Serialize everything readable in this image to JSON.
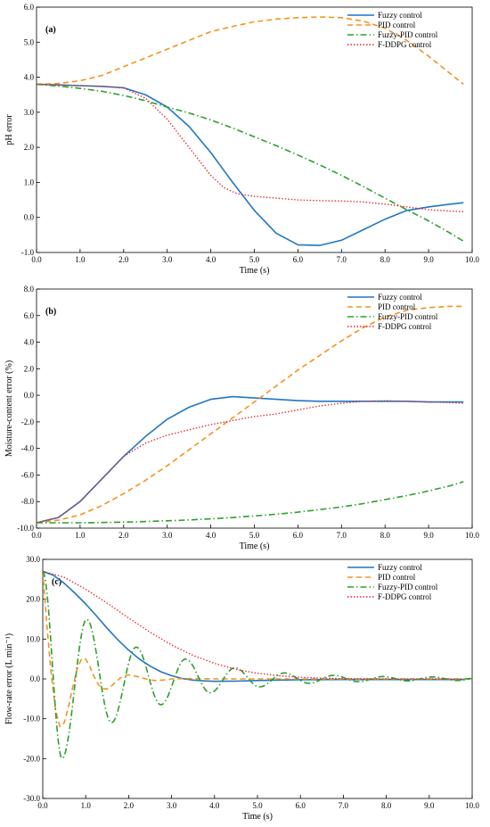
{
  "chart_data": [
    {
      "type": "line",
      "panel_label": "(a)",
      "xlabel": "Time (s)",
      "ylabel": "pH error",
      "xlim": [
        0,
        10
      ],
      "ylim": [
        -1,
        6
      ],
      "x_ticks": [
        "0.0",
        "1.0",
        "2.0",
        "3.0",
        "4.0",
        "5.0",
        "6.0",
        "7.0",
        "8.0",
        "9.0",
        "10.0"
      ],
      "y_ticks": [
        "-1.0",
        "0.0",
        "1.0",
        "2.0",
        "3.0",
        "4.0",
        "5.0",
        "6.0"
      ],
      "legend_position": "top-right",
      "series": [
        {
          "name": "Fuzzy control",
          "color": "#1f77c4",
          "style": "solid",
          "x": [
            0,
            0.5,
            1,
            1.5,
            2,
            2.5,
            3,
            3.5,
            4,
            4.5,
            5,
            5.5,
            6,
            6.5,
            7,
            7.5,
            8,
            8.5,
            9,
            9.5,
            9.8
          ],
          "y": [
            3.8,
            3.78,
            3.76,
            3.74,
            3.7,
            3.5,
            3.15,
            2.6,
            1.85,
            1.0,
            0.2,
            -0.45,
            -0.78,
            -0.8,
            -0.65,
            -0.35,
            -0.05,
            0.2,
            0.3,
            0.38,
            0.42
          ]
        },
        {
          "name": "PID control",
          "color": "#f5921e",
          "style": "dashed",
          "x": [
            0,
            0.5,
            1,
            1.5,
            2,
            2.5,
            3,
            3.5,
            4,
            4.5,
            5,
            5.5,
            6,
            6.5,
            7,
            7.5,
            8,
            8.5,
            9,
            9.5,
            9.8
          ],
          "y": [
            3.8,
            3.82,
            3.9,
            4.05,
            4.3,
            4.55,
            4.8,
            5.05,
            5.3,
            5.45,
            5.58,
            5.66,
            5.7,
            5.72,
            5.7,
            5.6,
            5.4,
            5.05,
            4.6,
            4.1,
            3.8
          ]
        },
        {
          "name": "Fuzzy-PID control",
          "color": "#2e9e2e",
          "style": "dashdot",
          "x": [
            0,
            0.5,
            1,
            1.5,
            2,
            2.5,
            3,
            3.5,
            4,
            4.5,
            5,
            5.5,
            6,
            6.5,
            7,
            7.5,
            8,
            8.5,
            9,
            9.5,
            9.8
          ],
          "y": [
            3.8,
            3.75,
            3.68,
            3.6,
            3.48,
            3.33,
            3.15,
            2.98,
            2.78,
            2.55,
            2.3,
            2.05,
            1.78,
            1.5,
            1.2,
            0.88,
            0.55,
            0.22,
            -0.1,
            -0.45,
            -0.68
          ]
        },
        {
          "name": "F-DDPG control",
          "color": "#e0262b",
          "style": "dotted",
          "x": [
            0,
            0.5,
            1,
            1.5,
            2,
            2.5,
            3,
            3.5,
            4,
            4.3,
            4.6,
            5,
            5.5,
            6,
            6.5,
            7,
            7.5,
            8,
            8.5,
            9,
            9.5,
            9.8
          ],
          "y": [
            3.8,
            3.78,
            3.76,
            3.74,
            3.7,
            3.4,
            2.8,
            2.0,
            1.2,
            0.85,
            0.68,
            0.6,
            0.55,
            0.5,
            0.48,
            0.47,
            0.44,
            0.38,
            0.3,
            0.22,
            0.18,
            0.16
          ]
        }
      ]
    },
    {
      "type": "line",
      "panel_label": "(b)",
      "xlabel": "Time (s)",
      "ylabel": "Moisture-content error (%)",
      "xlim": [
        0,
        10
      ],
      "ylim": [
        -10,
        8
      ],
      "x_ticks": [
        "0.0",
        "1.0",
        "2.0",
        "3.0",
        "4.0",
        "5.0",
        "6.0",
        "7.0",
        "8.0",
        "9.0",
        "10.0"
      ],
      "y_ticks": [
        "-10.0",
        "-8.0",
        "-6.0",
        "-4.0",
        "-2.0",
        "0.0",
        "2.0",
        "4.0",
        "6.0",
        "8.0"
      ],
      "legend_position": "top-right",
      "series": [
        {
          "name": "Fuzzy control",
          "color": "#1f77c4",
          "style": "solid",
          "x": [
            0,
            0.5,
            1,
            1.5,
            2,
            2.5,
            3,
            3.5,
            4,
            4.5,
            5,
            5.5,
            6,
            6.5,
            7,
            7.5,
            8,
            8.5,
            9,
            9.5,
            9.8
          ],
          "y": [
            -9.6,
            -9.2,
            -8.0,
            -6.3,
            -4.6,
            -3.1,
            -1.8,
            -0.9,
            -0.3,
            -0.1,
            -0.2,
            -0.3,
            -0.4,
            -0.45,
            -0.45,
            -0.45,
            -0.45,
            -0.45,
            -0.5,
            -0.5,
            -0.5
          ]
        },
        {
          "name": "PID control",
          "color": "#f5921e",
          "style": "dashed",
          "x": [
            0,
            0.5,
            1,
            1.5,
            2,
            2.5,
            3,
            3.5,
            4,
            4.5,
            5,
            5.5,
            6,
            6.5,
            7,
            7.5,
            8,
            8.5,
            9,
            9.5,
            9.8
          ],
          "y": [
            -9.6,
            -9.4,
            -9.0,
            -8.3,
            -7.4,
            -6.4,
            -5.3,
            -4.1,
            -2.9,
            -1.7,
            -0.5,
            0.7,
            1.9,
            3.0,
            4.1,
            5.1,
            5.9,
            6.4,
            6.6,
            6.7,
            6.7
          ]
        },
        {
          "name": "Fuzzy-PID control",
          "color": "#2e9e2e",
          "style": "dashdot",
          "x": [
            0,
            0.5,
            1,
            1.5,
            2,
            2.5,
            3,
            3.5,
            4,
            4.5,
            5,
            5.5,
            6,
            6.5,
            7,
            7.5,
            8,
            8.5,
            9,
            9.5,
            9.8
          ],
          "y": [
            -9.6,
            -9.6,
            -9.6,
            -9.58,
            -9.55,
            -9.5,
            -9.45,
            -9.38,
            -9.3,
            -9.2,
            -9.08,
            -8.95,
            -8.8,
            -8.6,
            -8.4,
            -8.15,
            -7.85,
            -7.55,
            -7.2,
            -6.8,
            -6.5
          ]
        },
        {
          "name": "F-DDPG control",
          "color": "#e0262b",
          "style": "dotted",
          "x": [
            0,
            0.5,
            1,
            1.5,
            2,
            2.5,
            3,
            3.5,
            4,
            4.5,
            5,
            5.5,
            6,
            6.5,
            7,
            7.5,
            8,
            8.5,
            9,
            9.5,
            9.8
          ],
          "y": [
            -9.6,
            -9.2,
            -8.0,
            -6.3,
            -4.6,
            -3.6,
            -3.0,
            -2.6,
            -2.2,
            -1.9,
            -1.6,
            -1.4,
            -1.1,
            -0.8,
            -0.6,
            -0.45,
            -0.4,
            -0.45,
            -0.5,
            -0.55,
            -0.6
          ]
        }
      ]
    },
    {
      "type": "line",
      "panel_label": "(c)",
      "xlabel": "Time (s)",
      "ylabel": "Flow-rate error (L min⁻¹)",
      "xlim": [
        0,
        10
      ],
      "ylim": [
        -30,
        30
      ],
      "x_ticks": [
        "0.0",
        "1.0",
        "2.0",
        "3.0",
        "4.0",
        "5.0",
        "6.0",
        "7.0",
        "8.0",
        "9.0",
        "10.0"
      ],
      "y_ticks": [
        "-30.0",
        "-20.0",
        "-10.0",
        "0.0",
        "10.0",
        "20.0",
        "30.0"
      ],
      "legend_position": "top-right",
      "series": [
        {
          "name": "Fuzzy control",
          "color": "#1f77c4",
          "style": "solid",
          "x": [
            0,
            0.25,
            0.5,
            0.75,
            1,
            1.25,
            1.5,
            1.75,
            2,
            2.25,
            2.5,
            2.75,
            3,
            3.25,
            3.5,
            3.75,
            4,
            4.5,
            5,
            5.5,
            6,
            7,
            8,
            9,
            9.8
          ],
          "y": [
            27,
            26,
            24,
            21.5,
            18.8,
            15.8,
            12.7,
            9.8,
            7.2,
            5.0,
            3.2,
            1.8,
            0.8,
            0.1,
            -0.3,
            -0.5,
            -0.6,
            -0.55,
            -0.4,
            -0.3,
            -0.2,
            -0.15,
            -0.15,
            -0.15,
            -0.15
          ]
        },
        {
          "name": "PID control",
          "color": "#f5921e",
          "style": "dashed",
          "x": [
            0,
            0.1,
            0.2,
            0.3,
            0.4,
            0.5,
            0.6,
            0.7,
            0.8,
            0.9,
            1.0,
            1.1,
            1.2,
            1.3,
            1.4,
            1.5,
            1.6,
            1.7,
            1.8,
            1.9,
            2.0,
            2.2,
            2.4,
            2.6,
            2.8,
            3.0,
            3.5,
            4,
            5,
            6,
            7,
            8,
            9,
            9.8
          ],
          "y": [
            27,
            13,
            1,
            -8,
            -12,
            -11,
            -7,
            -2,
            2.5,
            5,
            5,
            3,
            0.5,
            -1.5,
            -2.5,
            -2.5,
            -1.8,
            -0.8,
            0.2,
            0.8,
            1.0,
            0.6,
            0,
            -0.4,
            -0.3,
            0,
            0.1,
            0,
            0,
            0,
            0,
            0,
            0,
            0
          ]
        },
        {
          "name": "Fuzzy-PID control",
          "color": "#2e9e2e",
          "style": "dashdot",
          "x": [],
          "y": [],
          "oscillation": {
            "initial": 27,
            "peaks": [
              -20,
              15,
              -11,
              8,
              -6.5,
              5,
              -3.5,
              2.8,
              -2,
              1.5,
              -1.1,
              0.9,
              -0.7,
              0.6,
              -0.5,
              0.5,
              -0.4,
              0.4
            ],
            "period": 1.15,
            "first_trough_t": 0.45
          }
        },
        {
          "name": "F-DDPG control",
          "color": "#e0262b",
          "style": "dotted",
          "x": [
            0,
            0.5,
            1,
            1.5,
            2,
            2.5,
            3,
            3.5,
            4,
            4.5,
            5,
            5.5,
            6,
            6.5,
            7,
            7.5,
            8,
            8.5,
            9,
            9.5,
            9.8
          ],
          "y": [
            27,
            25.5,
            22.5,
            19,
            15.3,
            11.7,
            8.5,
            5.9,
            3.9,
            2.4,
            1.4,
            0.8,
            0.4,
            0.2,
            0.1,
            0.05,
            0,
            0,
            0,
            0,
            0
          ]
        }
      ]
    }
  ]
}
